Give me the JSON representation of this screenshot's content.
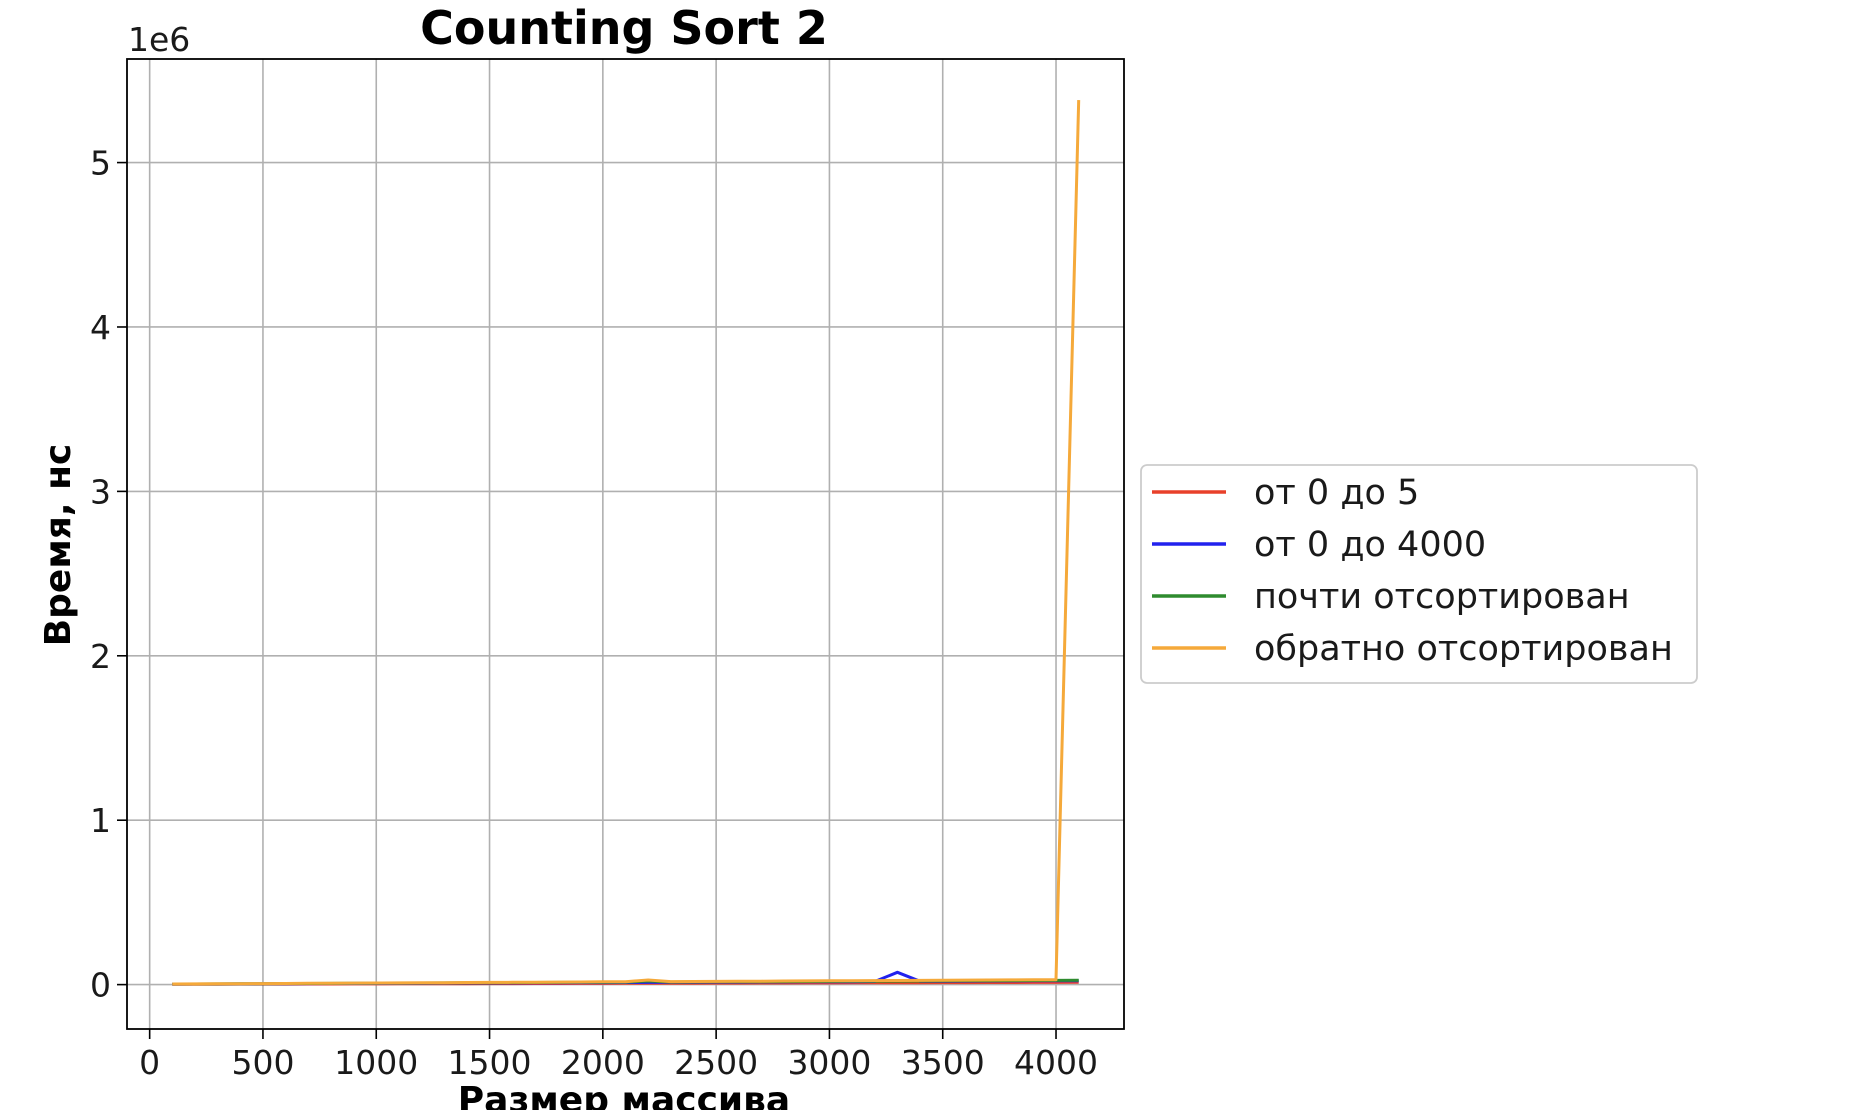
{
  "chart_data": {
    "type": "line",
    "title": "Counting Sort 2",
    "xlabel": "Размер массива",
    "ylabel": "Время, нс",
    "y_offset_text": "1e6",
    "xlim": [
      -100,
      4300
    ],
    "ylim": [
      -0.27,
      5.63
    ],
    "y_scale": 1000000,
    "xticks": [
      0,
      500,
      1000,
      1500,
      2000,
      2500,
      3000,
      3500,
      4000
    ],
    "yticks": [
      0,
      1,
      2,
      3,
      4,
      5
    ],
    "grid": true,
    "legend_position": "center-right, outside plot",
    "x": [
      100,
      200,
      300,
      400,
      500,
      600,
      700,
      800,
      900,
      1000,
      1100,
      1200,
      1300,
      1400,
      1500,
      1600,
      1700,
      1800,
      1900,
      2000,
      2100,
      2200,
      2300,
      2400,
      2500,
      2600,
      2700,
      2800,
      2900,
      3000,
      3100,
      3200,
      3300,
      3400,
      3500,
      3600,
      3700,
      3800,
      3900,
      4000,
      4100
    ],
    "series": [
      {
        "name": "от 0 до 5",
        "color": "#e8402a",
        "values": [
          2000,
          2200,
          2500,
          2800,
          3000,
          3300,
          3600,
          3900,
          4200,
          4500,
          4800,
          5100,
          5400,
          5700,
          6000,
          6300,
          6600,
          6900,
          7200,
          7500,
          7800,
          8100,
          8400,
          8700,
          9000,
          9300,
          9600,
          9900,
          10200,
          10500,
          10800,
          11100,
          11400,
          11700,
          12000,
          12300,
          12600,
          12900,
          13200,
          13500,
          13800
        ]
      },
      {
        "name": "от 0 до 4000",
        "color": "#2222ee",
        "values": [
          3000,
          3500,
          4000,
          4500,
          5000,
          5500,
          6000,
          6500,
          7000,
          7500,
          8000,
          8500,
          9000,
          9500,
          10000,
          10500,
          11000,
          11500,
          12000,
          12500,
          13000,
          13500,
          14000,
          14500,
          15000,
          15500,
          16000,
          16500,
          17000,
          17500,
          18000,
          19000,
          75000,
          20000,
          21000,
          21500,
          22000,
          22500,
          23000,
          23500,
          24000
        ]
      },
      {
        "name": "почти отсортирован",
        "color": "#2e8b2e",
        "values": [
          3000,
          3600,
          4200,
          4800,
          5400,
          6000,
          6600,
          7200,
          7800,
          8400,
          9000,
          9600,
          10200,
          10800,
          11400,
          12000,
          12600,
          13200,
          13800,
          14400,
          15000,
          22000,
          15600,
          16200,
          16800,
          17400,
          18000,
          18600,
          19200,
          19800,
          20400,
          21000,
          21600,
          22200,
          22800,
          23400,
          24000,
          24600,
          25200,
          25800,
          26400
        ]
      },
      {
        "name": "обратно отсортирован",
        "color": "#f5a93a",
        "values": [
          3500,
          4200,
          4900,
          5600,
          6300,
          7000,
          7700,
          8400,
          9100,
          9800,
          10500,
          11200,
          11900,
          12600,
          13300,
          14000,
          14700,
          15400,
          16100,
          16800,
          17500,
          28000,
          18200,
          18900,
          19600,
          20300,
          21000,
          21700,
          22400,
          23100,
          23800,
          24500,
          25200,
          25900,
          26600,
          27300,
          28000,
          28700,
          29400,
          30100,
          5380000
        ]
      }
    ]
  }
}
